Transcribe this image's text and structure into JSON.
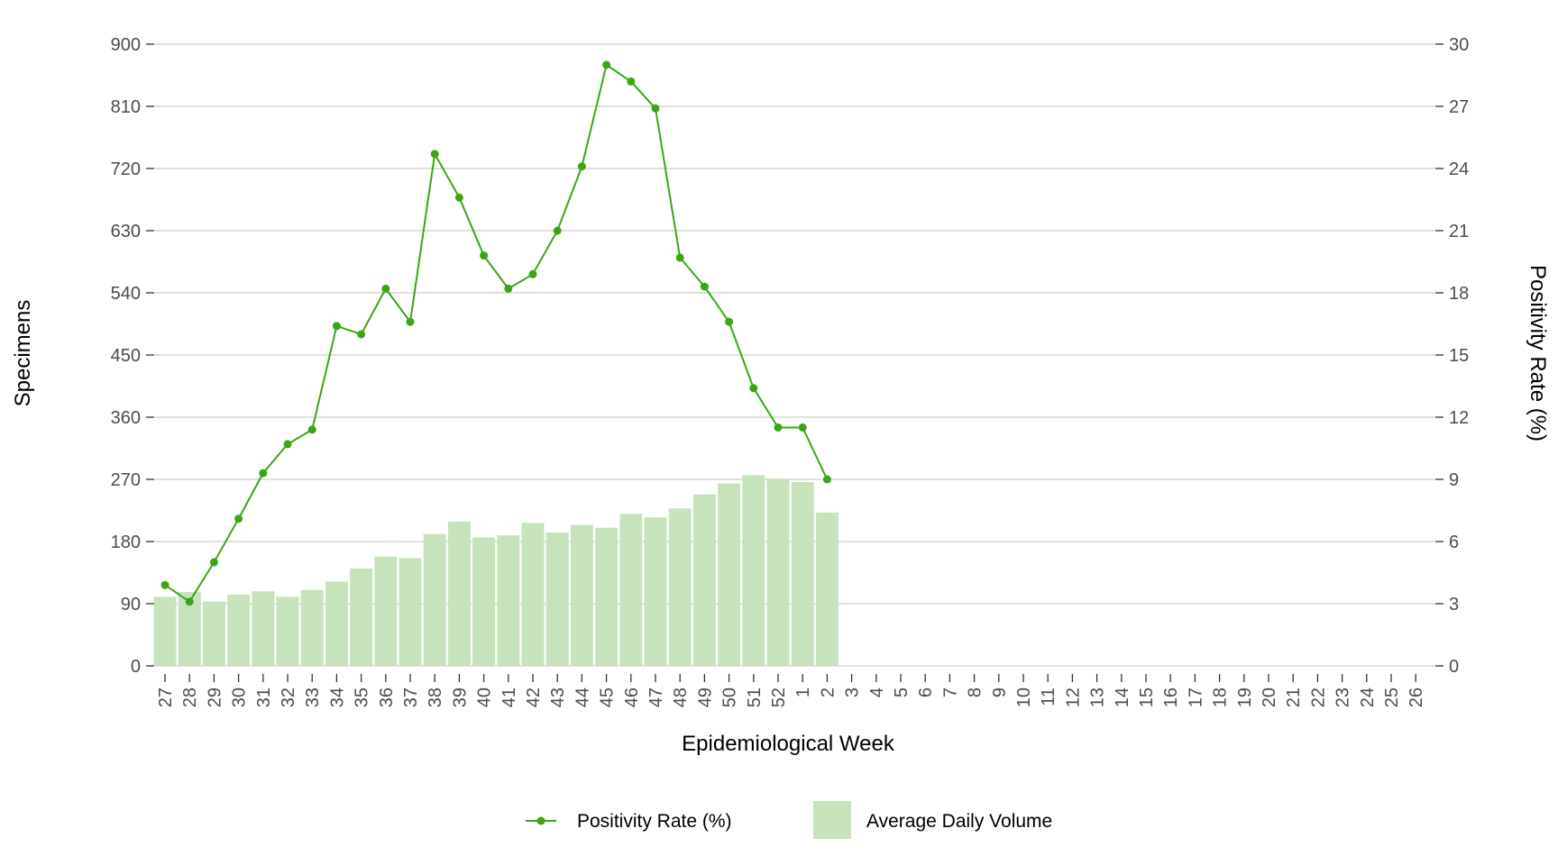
{
  "chart_data": {
    "type": "bar",
    "categories": [
      "27",
      "28",
      "29",
      "30",
      "31",
      "32",
      "33",
      "34",
      "35",
      "36",
      "37",
      "38",
      "39",
      "40",
      "41",
      "42",
      "43",
      "44",
      "45",
      "46",
      "47",
      "48",
      "49",
      "50",
      "51",
      "52",
      "1",
      "2",
      "3",
      "4",
      "5",
      "6",
      "7",
      "8",
      "9",
      "10",
      "11",
      "12",
      "13",
      "14",
      "15",
      "16",
      "17",
      "18",
      "19",
      "20",
      "21",
      "22",
      "23",
      "24",
      "25",
      "26"
    ],
    "series": [
      {
        "name": "Average Daily Volume",
        "type": "bar",
        "axis": "left",
        "values": [
          100,
          107,
          93,
          103,
          108,
          100,
          110,
          122,
          141,
          158,
          156,
          191,
          209,
          186,
          189,
          207,
          193,
          204,
          200,
          220,
          215,
          228,
          248,
          264,
          276,
          271,
          266,
          222,
          null,
          null,
          null,
          null,
          null,
          null,
          null,
          null,
          null,
          null,
          null,
          null,
          null,
          null,
          null,
          null,
          null,
          null,
          null,
          null,
          null,
          null,
          null,
          null
        ]
      },
      {
        "name": "Positivity Rate (%)",
        "type": "line",
        "axis": "right",
        "values": [
          3.9,
          3.1,
          5.0,
          7.1,
          9.3,
          10.7,
          11.4,
          16.4,
          16.0,
          18.2,
          16.6,
          24.7,
          22.6,
          19.8,
          18.2,
          18.9,
          21.0,
          24.1,
          29.0,
          28.2,
          26.9,
          19.7,
          18.3,
          16.6,
          13.4,
          11.5,
          11.5,
          9.0,
          null,
          null,
          null,
          null,
          null,
          null,
          null,
          null,
          null,
          null,
          null,
          null,
          null,
          null,
          null,
          null,
          null,
          null,
          null,
          null,
          null,
          null,
          null,
          null
        ]
      }
    ],
    "xlabel": "Epidemiological Week",
    "ylabel": "Specimens",
    "y2label": "Positivity Rate (%)",
    "ylim": [
      0,
      900
    ],
    "y2lim": [
      0,
      30
    ],
    "yticks": [
      "0",
      "90",
      "180",
      "270",
      "360",
      "450",
      "540",
      "630",
      "720",
      "810",
      "900"
    ],
    "y2ticks": [
      "0",
      "3",
      "6",
      "9",
      "12",
      "15",
      "18",
      "21",
      "24",
      "27",
      "30"
    ],
    "grid": true,
    "legend": "bottom",
    "colors": {
      "bar": "#c7e3bc",
      "line": "#3aa614",
      "grid": "#cccccc",
      "tick_text": "#4d4d4d"
    }
  }
}
